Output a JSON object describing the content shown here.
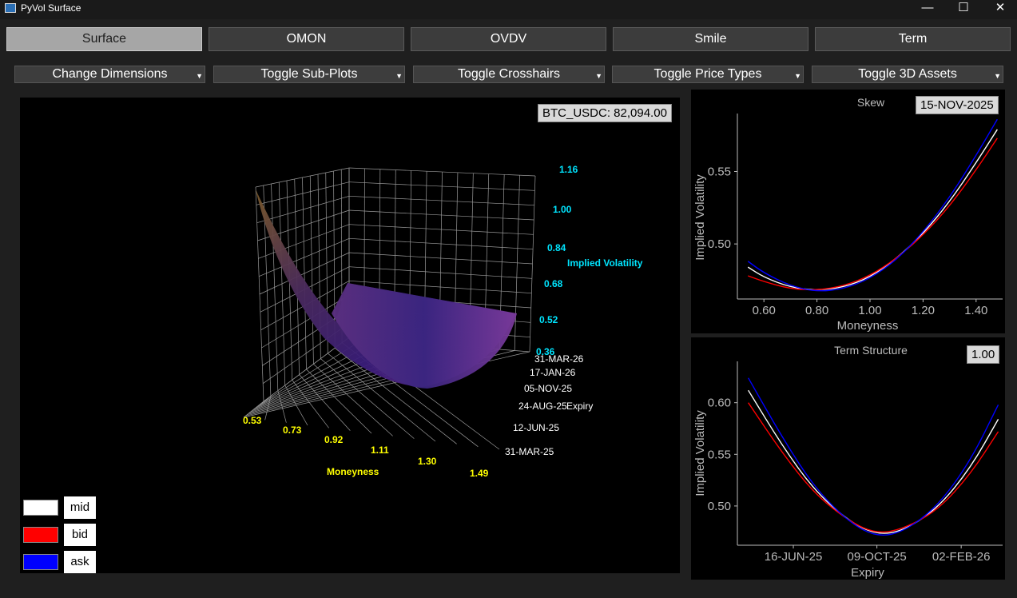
{
  "window": {
    "title": "PyVol Surface",
    "minimize": "—",
    "maximize": "☐",
    "close": "✕"
  },
  "tabs": [
    {
      "label": "Surface",
      "active": true
    },
    {
      "label": "OMON",
      "active": false
    },
    {
      "label": "OVDV",
      "active": false
    },
    {
      "label": "Smile",
      "active": false
    },
    {
      "label": "Term",
      "active": false
    }
  ],
  "controls": [
    {
      "label": "Change Dimensions"
    },
    {
      "label": "Toggle Sub-Plots"
    },
    {
      "label": "Toggle Crosshairs"
    },
    {
      "label": "Toggle Price Types"
    },
    {
      "label": "Toggle 3D Assets"
    }
  ],
  "surface": {
    "price_label": "BTC_USDC:  82,094.00",
    "z_axis": {
      "label": "Implied Volatility",
      "ticks": [
        "1.16",
        "1.00",
        "0.84",
        "0.68",
        "0.52",
        "0.36"
      ]
    },
    "x_axis": {
      "label": "Moneyness",
      "ticks": [
        "0.53",
        "0.73",
        "0.92",
        "1.11",
        "1.30",
        "1.49"
      ]
    },
    "y_axis": {
      "label": "Expiry",
      "ticks": [
        "31-MAR-26",
        "17-JAN-26",
        "05-NOV-25",
        "24-AUG-25",
        "12-JUN-25",
        "31-MAR-25"
      ]
    },
    "legend": [
      {
        "label": "mid",
        "color": "#ffffff"
      },
      {
        "label": "bid",
        "color": "#ff0000"
      },
      {
        "label": "ask",
        "color": "#0000ff"
      }
    ]
  },
  "skew_chart": {
    "title": "Skew",
    "badge": "15-NOV-2025",
    "xlabel": "Moneyness",
    "ylabel": "Implied Volatility",
    "xticks": [
      "0.60",
      "0.80",
      "1.00",
      "1.20",
      "1.40"
    ],
    "yticks": [
      "0.55",
      "0.50"
    ]
  },
  "term_chart": {
    "title": "Term Structure",
    "badge": "1.00",
    "xlabel": "Expiry",
    "ylabel": "Implied Volatility",
    "xticks": [
      "16-JUN-25",
      "09-OCT-25",
      "02-FEB-26"
    ],
    "yticks": [
      "0.60",
      "0.55",
      "0.50"
    ]
  },
  "chart_data": [
    {
      "type": "line",
      "title": "Skew",
      "xlabel": "Moneyness",
      "ylabel": "Implied Volatility",
      "xlim": [
        0.5,
        1.5
      ],
      "ylim": [
        0.462,
        0.59
      ],
      "x": [
        0.54,
        0.6,
        0.7,
        0.8,
        0.9,
        1.0,
        1.1,
        1.2,
        1.3,
        1.4,
        1.48
      ],
      "series": [
        {
          "name": "mid",
          "color": "#ffffff",
          "values": [
            0.484,
            0.477,
            0.47,
            0.468,
            0.47,
            0.477,
            0.49,
            0.507,
            0.529,
            0.556,
            0.579
          ]
        },
        {
          "name": "bid",
          "color": "#ff0000",
          "values": [
            0.478,
            0.474,
            0.469,
            0.468,
            0.471,
            0.478,
            0.49,
            0.506,
            0.526,
            0.551,
            0.573
          ]
        },
        {
          "name": "ask",
          "color": "#0000ff",
          "values": [
            0.488,
            0.48,
            0.471,
            0.467,
            0.469,
            0.476,
            0.489,
            0.508,
            0.532,
            0.561,
            0.586
          ]
        }
      ]
    },
    {
      "type": "line",
      "title": "Term Structure",
      "xlabel": "Expiry",
      "ylabel": "Implied Volatility",
      "xlim": [
        "2025-03-31",
        "2026-03-31"
      ],
      "ylim": [
        0.462,
        0.64
      ],
      "x": [
        "2025-04-15",
        "2025-06-01",
        "2025-07-15",
        "2025-09-01",
        "2025-10-09",
        "2025-11-15",
        "2026-01-01",
        "2026-02-15",
        "2026-03-25"
      ],
      "series": [
        {
          "name": "mid",
          "color": "#ffffff",
          "values": [
            0.612,
            0.558,
            0.515,
            0.485,
            0.472,
            0.476,
            0.498,
            0.537,
            0.584
          ]
        },
        {
          "name": "bid",
          "color": "#ff0000",
          "values": [
            0.6,
            0.551,
            0.512,
            0.485,
            0.473,
            0.478,
            0.496,
            0.531,
            0.572
          ]
        },
        {
          "name": "ask",
          "color": "#0000ff",
          "values": [
            0.624,
            0.566,
            0.518,
            0.484,
            0.47,
            0.475,
            0.5,
            0.544,
            0.598
          ]
        }
      ]
    }
  ]
}
